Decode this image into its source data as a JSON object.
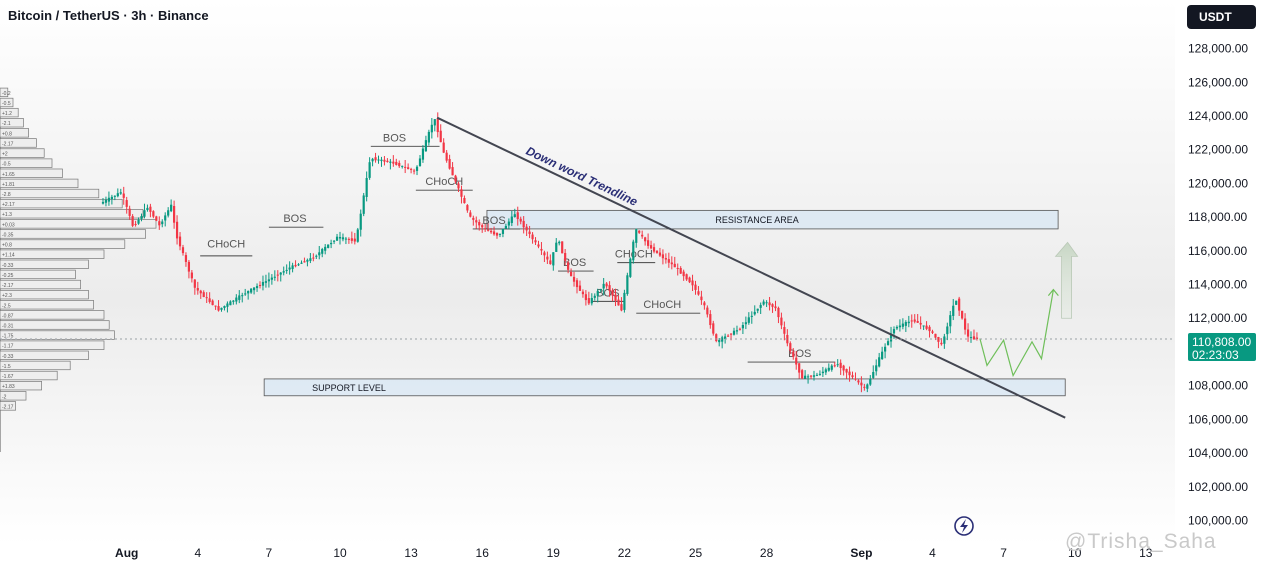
{
  "header": {
    "title": "Bitcoin / TetherUS · 3h · Binance"
  },
  "currency": "USDT",
  "last_price": {
    "price": "110,808.00",
    "countdown": "02:23:03"
  },
  "watermark": "@Trisha_Saha",
  "colors": {
    "up": "#089981",
    "down": "#f23645",
    "trend": "#434651",
    "zone_fill": "#dbe7f3",
    "forecast": "#6fbf5a"
  },
  "chart_data": {
    "type": "candlestick",
    "y_axis": {
      "range": [
        99500,
        129500
      ],
      "ticks": [
        100000,
        102000,
        104000,
        106000,
        108000,
        110000,
        112000,
        114000,
        116000,
        118000,
        120000,
        122000,
        124000,
        126000,
        128000
      ],
      "tick_labels": [
        "100,000.00",
        "102,000.00",
        "104,000.00",
        "106,000.00",
        "108,000.00",
        "110,000.00",
        "112,000.00",
        "114,000.00",
        "116,000.00",
        "118,000.00",
        "120,000.00",
        "122,000.00",
        "124,000.00",
        "126,000.00",
        "128,000.00"
      ]
    },
    "x_axis": {
      "ticks": [
        {
          "day": 1,
          "label": "Aug"
        },
        {
          "day": 4,
          "label": "4"
        },
        {
          "day": 7,
          "label": "7"
        },
        {
          "day": 10,
          "label": "10"
        },
        {
          "day": 13,
          "label": "13"
        },
        {
          "day": 16,
          "label": "16"
        },
        {
          "day": 19,
          "label": "19"
        },
        {
          "day": 22,
          "label": "22"
        },
        {
          "day": 25,
          "label": "25"
        },
        {
          "day": 28,
          "label": "28"
        },
        {
          "day": 32,
          "label": "Sep"
        },
        {
          "day": 35,
          "label": "4"
        },
        {
          "day": 38,
          "label": "7"
        },
        {
          "day": 41,
          "label": "10"
        },
        {
          "day": 44,
          "label": "13"
        }
      ]
    },
    "price_path": [
      [
        0,
        118800
      ],
      [
        0.9,
        119500
      ],
      [
        1.4,
        117400
      ],
      [
        2,
        118600
      ],
      [
        2.5,
        117500
      ],
      [
        3,
        118700
      ],
      [
        3.2,
        117000
      ],
      [
        4,
        113800
      ],
      [
        5,
        112500
      ],
      [
        6,
        113400
      ],
      [
        7,
        114200
      ],
      [
        8,
        115000
      ],
      [
        9,
        115600
      ],
      [
        10,
        116800
      ],
      [
        10.8,
        116600
      ],
      [
        11.4,
        121500
      ],
      [
        12.4,
        121200
      ],
      [
        13.3,
        120700
      ],
      [
        14.1,
        123900
      ],
      [
        14.5,
        121800
      ],
      [
        15.6,
        118000
      ],
      [
        16.2,
        117300
      ],
      [
        16.8,
        116900
      ],
      [
        17.5,
        118200
      ],
      [
        18.1,
        117000
      ],
      [
        19,
        115200
      ],
      [
        19.3,
        116800
      ],
      [
        19.8,
        114600
      ],
      [
        20.6,
        112900
      ],
      [
        21.3,
        114100
      ],
      [
        22,
        112500
      ],
      [
        22.6,
        117300
      ],
      [
        23.2,
        116200
      ],
      [
        24.3,
        115000
      ],
      [
        25,
        114000
      ],
      [
        25.5,
        112700
      ],
      [
        26,
        110600
      ],
      [
        27,
        111400
      ],
      [
        28,
        113000
      ],
      [
        28.5,
        112600
      ],
      [
        29,
        110500
      ],
      [
        29.6,
        108500
      ],
      [
        30.2,
        108600
      ],
      [
        31.1,
        109300
      ],
      [
        32.3,
        107800
      ],
      [
        32.9,
        109700
      ],
      [
        33.5,
        111400
      ],
      [
        34.3,
        111900
      ],
      [
        35,
        111300
      ],
      [
        35.5,
        110400
      ],
      [
        36.1,
        113200
      ],
      [
        36.6,
        110900
      ],
      [
        36.9,
        110800
      ]
    ],
    "trendline": {
      "label": "Down word Trendline",
      "from": {
        "day": 14.1,
        "price": 123900
      },
      "to": {
        "day": 40.6,
        "price": 106100
      }
    },
    "zones": [
      {
        "label": "RESISTANCE AREA",
        "day_from": 16.2,
        "day_to": 40.3,
        "price_low": 117300,
        "price_high": 118400
      },
      {
        "label": "SUPPORT LEVEL",
        "day_from": 6.8,
        "day_to": 40.6,
        "price_low": 107400,
        "price_high": 108400
      }
    ],
    "annotations": [
      {
        "text": "BOS",
        "day": 12.3,
        "price": 122500,
        "line": {
          "day_from": 11.3,
          "day_to": 14.2,
          "price": 122200
        }
      },
      {
        "text": "BOS",
        "day": 8.1,
        "price": 117700,
        "line": {
          "day_from": 7,
          "day_to": 9.3,
          "price": 117400
        }
      },
      {
        "text": "CHoCH",
        "day": 5.2,
        "price": 116200,
        "line": {
          "day_from": 4.1,
          "day_to": 6.3,
          "price": 115700
        }
      },
      {
        "text": "CHoCH",
        "day": 14.4,
        "price": 119900,
        "line": {
          "day_from": 13.2,
          "day_to": 15.6,
          "price": 119600
        }
      },
      {
        "text": "BOS",
        "day": 16.5,
        "price": 117600,
        "line": {
          "day_from": 15.6,
          "day_to": 17.6,
          "price": 117300
        }
      },
      {
        "text": "BOS",
        "day": 19.9,
        "price": 115100,
        "line": {
          "day_from": 19.2,
          "day_to": 20.7,
          "price": 114800
        }
      },
      {
        "text": "CHoCH",
        "day": 22.4,
        "price": 115600,
        "line": {
          "day_from": 21.7,
          "day_to": 23.3,
          "price": 115300
        }
      },
      {
        "text": "BOS",
        "day": 21.3,
        "price": 113300,
        "line": {
          "day_from": 20.6,
          "day_to": 22,
          "price": 113000
        }
      },
      {
        "text": "CHoCH",
        "day": 23.6,
        "price": 112600,
        "line": {
          "day_from": 22.5,
          "day_to": 25.2,
          "price": 112300
        }
      },
      {
        "text": "BOS",
        "day": 29.4,
        "price": 109700,
        "line": {
          "day_from": 27.2,
          "day_to": 30.9,
          "price": 109400
        }
      }
    ],
    "forecast_path": [
      [
        37,
        110800
      ],
      [
        37.3,
        109200
      ],
      [
        38,
        110700
      ],
      [
        38.4,
        108600
      ],
      [
        39.2,
        110600
      ],
      [
        39.6,
        109600
      ],
      [
        40.1,
        113700
      ]
    ],
    "projection_arrow": {
      "day": 40.7,
      "price_from": 112000,
      "price_to": 116500
    },
    "volume_profile": [
      {
        "price": 125400,
        "len": 3,
        "label": "-0.2"
      },
      {
        "price": 124800,
        "len": 5,
        "label": "-0.5"
      },
      {
        "price": 124200,
        "len": 7,
        "label": "+1.2"
      },
      {
        "price": 123600,
        "len": 9,
        "label": "-2.1"
      },
      {
        "price": 123000,
        "len": 11,
        "label": "+0.8"
      },
      {
        "price": 122400,
        "len": 14,
        "label": "-2.17"
      },
      {
        "price": 121800,
        "len": 17,
        "label": "+2"
      },
      {
        "price": 121200,
        "len": 20,
        "label": "-0.5"
      },
      {
        "price": 120600,
        "len": 24,
        "label": "+1.65"
      },
      {
        "price": 120000,
        "len": 30,
        "label": "+1.81"
      },
      {
        "price": 119400,
        "len": 38,
        "label": "-2.8"
      },
      {
        "price": 118800,
        "len": 47,
        "label": "+2.17"
      },
      {
        "price": 118200,
        "len": 55,
        "label": "+1.3"
      },
      {
        "price": 117600,
        "len": 60,
        "label": "+0.03"
      },
      {
        "price": 117000,
        "len": 56,
        "label": "-0.35"
      },
      {
        "price": 116400,
        "len": 48,
        "label": "+0.8"
      },
      {
        "price": 115800,
        "len": 40,
        "label": "+1.14"
      },
      {
        "price": 115200,
        "len": 34,
        "label": "-0.33"
      },
      {
        "price": 114600,
        "len": 29,
        "label": "-0.25"
      },
      {
        "price": 114000,
        "len": 31,
        "label": "-2.17"
      },
      {
        "price": 113400,
        "len": 34,
        "label": "+2.3"
      },
      {
        "price": 112800,
        "len": 36,
        "label": "-2.5"
      },
      {
        "price": 112200,
        "len": 40,
        "label": "-0.87"
      },
      {
        "price": 111600,
        "len": 42,
        "label": "-0.31"
      },
      {
        "price": 111000,
        "len": 44,
        "label": "-1.75"
      },
      {
        "price": 110400,
        "len": 40,
        "label": "-1.17"
      },
      {
        "price": 109800,
        "len": 34,
        "label": "-0.33"
      },
      {
        "price": 109200,
        "len": 27,
        "label": "-1.5"
      },
      {
        "price": 108600,
        "len": 22,
        "label": "-1.67"
      },
      {
        "price": 108000,
        "len": 16,
        "label": "+1.83"
      },
      {
        "price": 107400,
        "len": 10,
        "label": "-2"
      },
      {
        "price": 106800,
        "len": 6,
        "label": "-2.17"
      }
    ]
  }
}
